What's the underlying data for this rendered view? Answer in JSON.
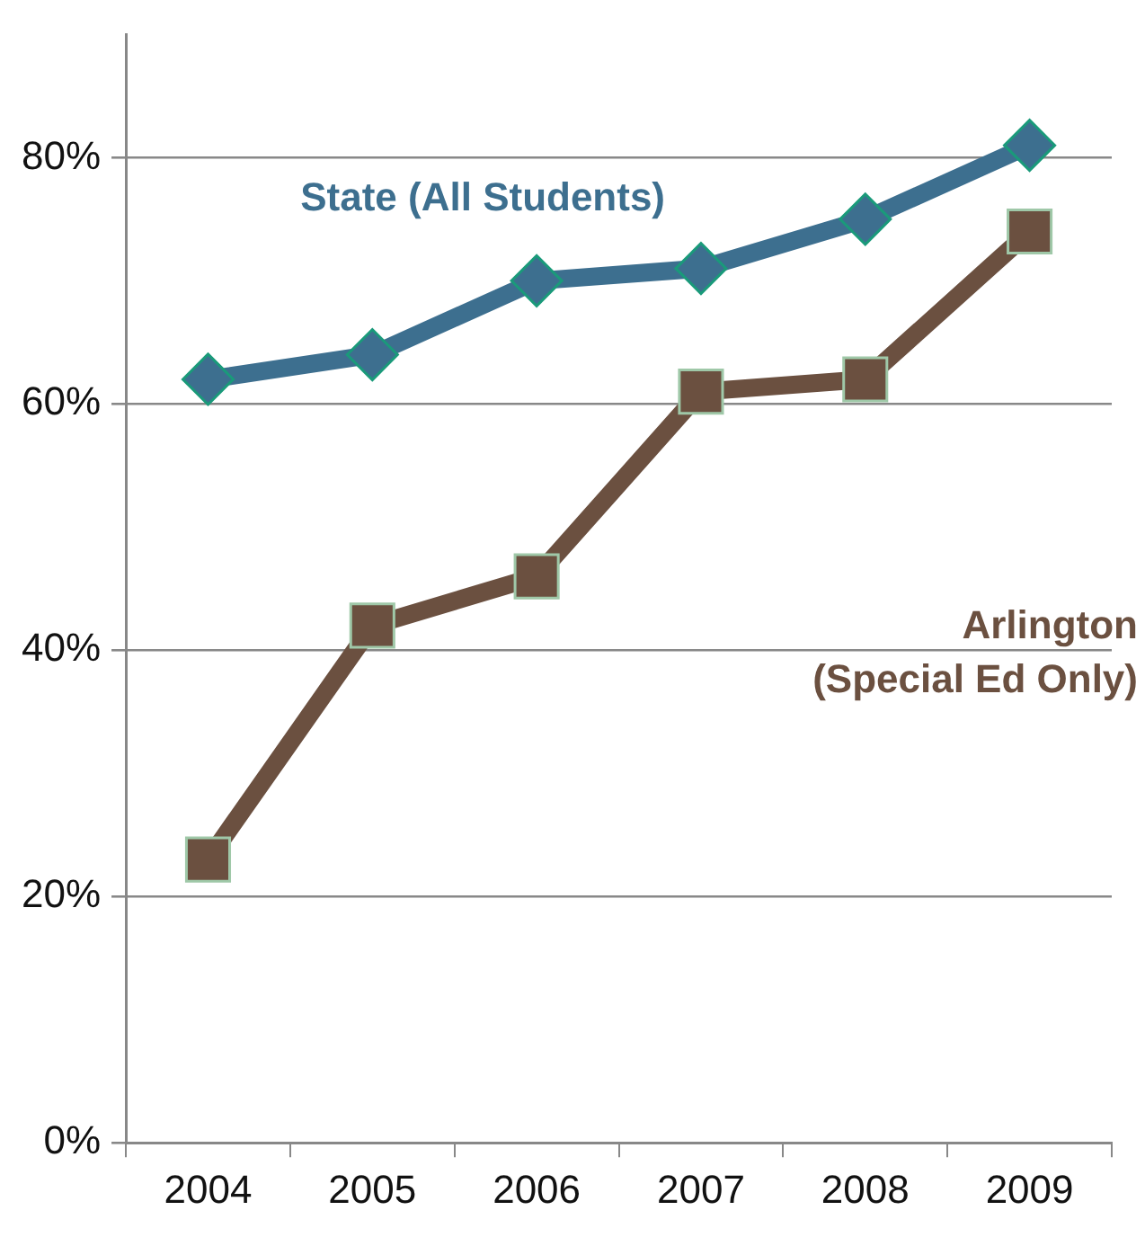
{
  "chart_data": {
    "type": "line",
    "categories": [
      "2004",
      "2005",
      "2006",
      "2007",
      "2008",
      "2009"
    ],
    "series": [
      {
        "name": "State (All Students)",
        "color": "#3d6f8f",
        "marker": "diamond",
        "values": [
          62,
          64,
          70,
          71,
          75,
          81
        ]
      },
      {
        "name": "Arlington\n(Special Ed Only)",
        "color": "#6b5040",
        "marker": "square",
        "values": [
          23,
          42,
          46,
          61,
          62,
          74
        ]
      }
    ],
    "ylim": [
      0,
      90
    ],
    "yticks": [
      {
        "value": 0,
        "label": "0%"
      },
      {
        "value": 20,
        "label": "20%"
      },
      {
        "value": 40,
        "label": "40%"
      },
      {
        "value": 60,
        "label": "60%"
      },
      {
        "value": 80,
        "label": "80%"
      }
    ],
    "grid": "y",
    "legend": false,
    "line_style": "solid"
  }
}
